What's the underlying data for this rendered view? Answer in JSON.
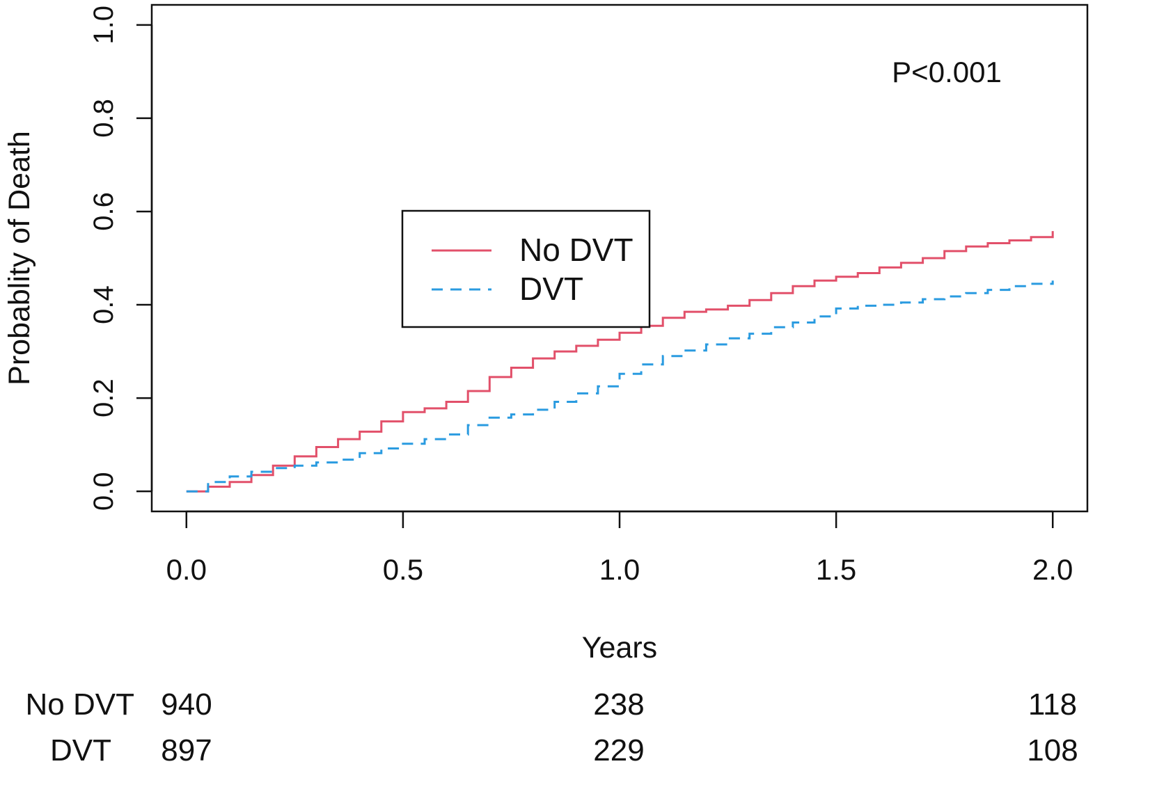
{
  "chart_data": {
    "type": "line",
    "title": "",
    "xlabel": "Years",
    "ylabel": "Probablity of Death",
    "xlim": [
      -0.08,
      2.08
    ],
    "ylim": [
      -0.043,
      1.043
    ],
    "xticks": [
      0.0,
      0.5,
      1.0,
      1.5,
      2.0
    ],
    "xtick_labels": [
      "0.0",
      "0.5",
      "1.0",
      "1.5",
      "2.0"
    ],
    "yticks": [
      0.0,
      0.2,
      0.4,
      0.6,
      0.8,
      1.0
    ],
    "ytick_labels": [
      "0.0",
      "0.2",
      "0.4",
      "0.6",
      "0.8",
      "1.0"
    ],
    "grid": false,
    "legend_position": "center",
    "annotation": "P<0.001",
    "colors": {
      "no_dvt": "#e2506a",
      "dvt": "#2a9be0"
    },
    "series": [
      {
        "name": "No DVT",
        "key": "no_dvt",
        "style": "solid",
        "x": [
          0.0,
          0.05,
          0.1,
          0.15,
          0.2,
          0.25,
          0.3,
          0.35,
          0.4,
          0.45,
          0.5,
          0.55,
          0.6,
          0.65,
          0.7,
          0.75,
          0.8,
          0.85,
          0.9,
          0.95,
          1.0,
          1.05,
          1.1,
          1.15,
          1.2,
          1.25,
          1.3,
          1.35,
          1.4,
          1.45,
          1.5,
          1.55,
          1.6,
          1.65,
          1.7,
          1.75,
          1.8,
          1.85,
          1.9,
          1.95,
          2.0
        ],
        "y": [
          0.0,
          0.01,
          0.02,
          0.035,
          0.055,
          0.075,
          0.095,
          0.112,
          0.128,
          0.15,
          0.17,
          0.178,
          0.192,
          0.215,
          0.245,
          0.265,
          0.285,
          0.3,
          0.312,
          0.325,
          0.34,
          0.355,
          0.372,
          0.385,
          0.39,
          0.398,
          0.41,
          0.425,
          0.44,
          0.452,
          0.46,
          0.468,
          0.48,
          0.49,
          0.5,
          0.515,
          0.525,
          0.532,
          0.538,
          0.545,
          0.558
        ]
      },
      {
        "name": "DVT",
        "key": "dvt",
        "style": "dashed",
        "x": [
          0.0,
          0.05,
          0.1,
          0.15,
          0.2,
          0.25,
          0.3,
          0.35,
          0.4,
          0.45,
          0.5,
          0.55,
          0.6,
          0.65,
          0.7,
          0.75,
          0.8,
          0.85,
          0.9,
          0.95,
          1.0,
          1.05,
          1.1,
          1.15,
          1.2,
          1.25,
          1.3,
          1.35,
          1.4,
          1.45,
          1.5,
          1.55,
          1.6,
          1.65,
          1.7,
          1.75,
          1.8,
          1.85,
          1.9,
          1.95,
          2.0
        ],
        "y": [
          0.0,
          0.02,
          0.032,
          0.042,
          0.05,
          0.055,
          0.062,
          0.068,
          0.082,
          0.092,
          0.102,
          0.112,
          0.122,
          0.142,
          0.158,
          0.165,
          0.175,
          0.192,
          0.21,
          0.225,
          0.252,
          0.272,
          0.29,
          0.302,
          0.315,
          0.328,
          0.338,
          0.352,
          0.362,
          0.375,
          0.392,
          0.398,
          0.4,
          0.405,
          0.412,
          0.418,
          0.425,
          0.432,
          0.44,
          0.445,
          0.452
        ]
      }
    ],
    "risk_table": {
      "times": [
        0.0,
        1.0,
        2.0
      ],
      "rows": [
        {
          "label": "No DVT",
          "counts": [
            "940",
            "238",
            "118"
          ]
        },
        {
          "label": "DVT",
          "counts": [
            "897",
            "229",
            "108"
          ]
        }
      ]
    }
  }
}
